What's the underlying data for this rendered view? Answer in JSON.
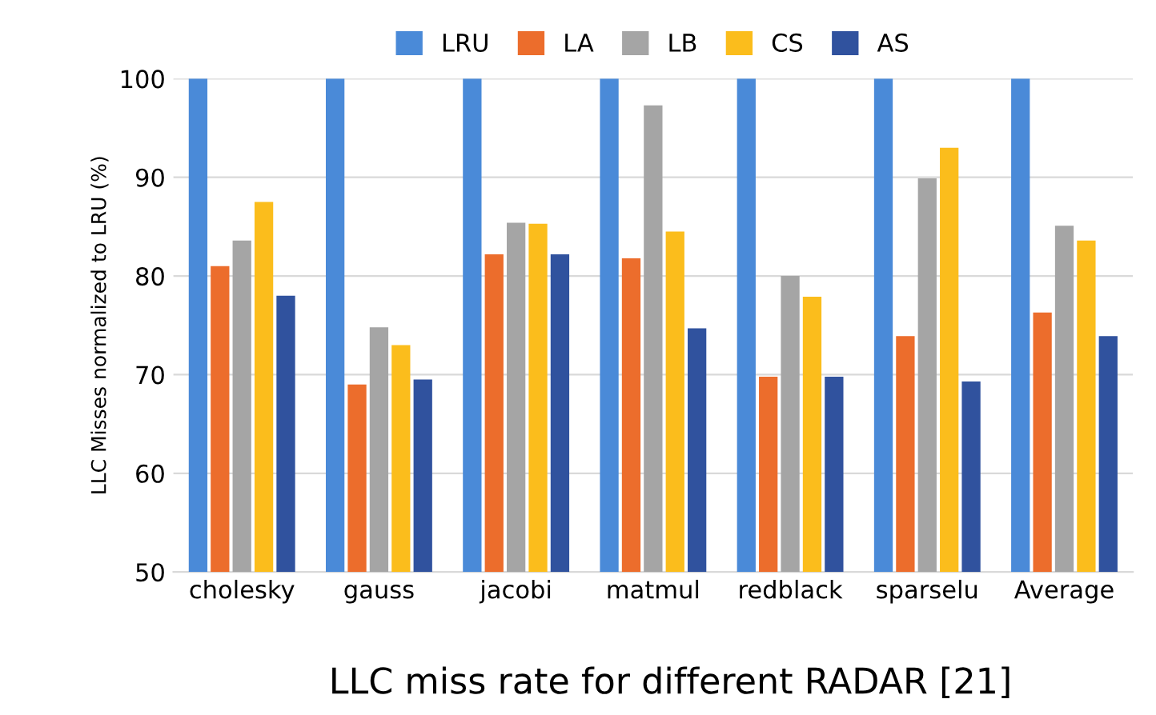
{
  "chart_data": {
    "type": "bar",
    "ylabel": "LLC Misses normalized to LRU (%)",
    "categories": [
      "cholesky",
      "gauss",
      "jacobi",
      "matmul",
      "redblack",
      "sparselu",
      "Average"
    ],
    "series": [
      {
        "name": "LRU",
        "color": "#4a8ad8",
        "values": [
          100,
          100,
          100,
          100,
          100,
          100,
          100
        ]
      },
      {
        "name": "LA",
        "color": "#ec6d2c",
        "values": [
          81,
          69,
          82.2,
          81.8,
          69.8,
          73.9,
          76.3
        ]
      },
      {
        "name": "LB",
        "color": "#a5a5a5",
        "values": [
          83.6,
          74.8,
          85.4,
          97.3,
          80,
          89.9,
          85.1
        ]
      },
      {
        "name": "CS",
        "color": "#fbbd1c",
        "values": [
          87.5,
          73,
          85.3,
          84.5,
          77.9,
          93,
          83.6
        ]
      },
      {
        "name": "AS",
        "color": "#30529e",
        "values": [
          78,
          69.5,
          82.2,
          74.7,
          69.8,
          69.3,
          73.9
        ]
      }
    ],
    "ylim": [
      50,
      100
    ],
    "yticks": [
      50,
      60,
      70,
      80,
      90,
      100
    ],
    "grid": "y",
    "legend": "top",
    "annotations": [
      "LLC miss rate for different RADAR [21]"
    ]
  }
}
